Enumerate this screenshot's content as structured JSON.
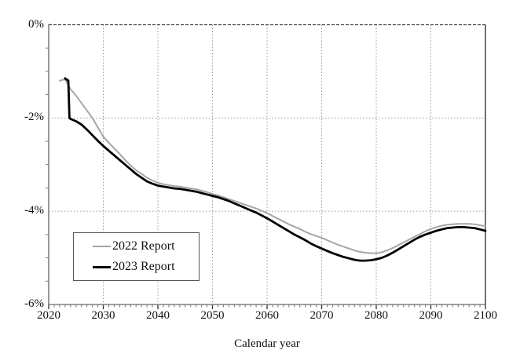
{
  "chart_data": {
    "type": "line",
    "title": "",
    "xlabel": "Calendar year",
    "ylabel": "",
    "xlim": [
      2020,
      2100
    ],
    "ylim": [
      -6,
      0
    ],
    "x_major_ticks": [
      2020,
      2030,
      2040,
      2050,
      2060,
      2070,
      2080,
      2090,
      2100
    ],
    "x_tick_labels": [
      "2020",
      "2030",
      "2040",
      "2050",
      "2060",
      "2070",
      "2080",
      "2090",
      "2100"
    ],
    "x_minor_step": 1,
    "y_major_ticks": [
      0,
      -2,
      -4,
      -6
    ],
    "y_tick_labels": [
      "0%",
      "-2%",
      "-4%",
      "-6%"
    ],
    "y_minor_step": 0.5,
    "grid_x": [
      2030,
      2040,
      2050,
      2060,
      2070,
      2080,
      2090
    ],
    "grid_y": [
      0,
      -2,
      -4
    ],
    "grid_on": true,
    "legend_position": "lower-left-inside",
    "colors": {
      "axis": "#808080",
      "right_border": "#333333",
      "grid": "#999999",
      "zero_line": "#444444",
      "tick_minor": "#777777",
      "tick_major": "#333333",
      "text": "#111111",
      "legend_border": "#555555"
    },
    "series": [
      {
        "name": "2022 Report",
        "color": "#a6a6a6",
        "width": 2,
        "points": [
          [
            2022,
            -1.2
          ],
          [
            2023,
            -1.17
          ],
          [
            2024,
            -1.38
          ],
          [
            2025,
            -1.52
          ],
          [
            2026,
            -1.68
          ],
          [
            2027,
            -1.84
          ],
          [
            2028,
            -2.0
          ],
          [
            2029,
            -2.2
          ],
          [
            2030,
            -2.4
          ],
          [
            2031,
            -2.53
          ],
          [
            2032,
            -2.65
          ],
          [
            2033,
            -2.77
          ],
          [
            2034,
            -2.9
          ],
          [
            2035,
            -3.02
          ],
          [
            2036,
            -3.12
          ],
          [
            2037,
            -3.2
          ],
          [
            2038,
            -3.28
          ],
          [
            2039,
            -3.34
          ],
          [
            2040,
            -3.39
          ],
          [
            2041,
            -3.42
          ],
          [
            2042,
            -3.44
          ],
          [
            2043,
            -3.46
          ],
          [
            2044,
            -3.47
          ],
          [
            2045,
            -3.49
          ],
          [
            2046,
            -3.51
          ],
          [
            2047,
            -3.53
          ],
          [
            2048,
            -3.56
          ],
          [
            2049,
            -3.59
          ],
          [
            2050,
            -3.63
          ],
          [
            2051,
            -3.66
          ],
          [
            2052,
            -3.7
          ],
          [
            2053,
            -3.74
          ],
          [
            2054,
            -3.78
          ],
          [
            2055,
            -3.82
          ],
          [
            2056,
            -3.86
          ],
          [
            2057,
            -3.9
          ],
          [
            2058,
            -3.94
          ],
          [
            2059,
            -3.99
          ],
          [
            2060,
            -4.04
          ],
          [
            2061,
            -4.1
          ],
          [
            2062,
            -4.16
          ],
          [
            2063,
            -4.22
          ],
          [
            2064,
            -4.28
          ],
          [
            2065,
            -4.33
          ],
          [
            2066,
            -4.38
          ],
          [
            2067,
            -4.44
          ],
          [
            2068,
            -4.49
          ],
          [
            2069,
            -4.53
          ],
          [
            2070,
            -4.57
          ],
          [
            2071,
            -4.62
          ],
          [
            2072,
            -4.67
          ],
          [
            2073,
            -4.72
          ],
          [
            2074,
            -4.76
          ],
          [
            2075,
            -4.8
          ],
          [
            2076,
            -4.84
          ],
          [
            2077,
            -4.87
          ],
          [
            2078,
            -4.89
          ],
          [
            2079,
            -4.9
          ],
          [
            2080,
            -4.9
          ],
          [
            2081,
            -4.88
          ],
          [
            2082,
            -4.84
          ],
          [
            2083,
            -4.79
          ],
          [
            2084,
            -4.73
          ],
          [
            2085,
            -4.67
          ],
          [
            2086,
            -4.61
          ],
          [
            2087,
            -4.55
          ],
          [
            2088,
            -4.49
          ],
          [
            2089,
            -4.43
          ],
          [
            2090,
            -4.38
          ],
          [
            2091,
            -4.34
          ],
          [
            2092,
            -4.31
          ],
          [
            2093,
            -4.29
          ],
          [
            2094,
            -4.28
          ],
          [
            2095,
            -4.27
          ],
          [
            2096,
            -4.27
          ],
          [
            2097,
            -4.27
          ],
          [
            2098,
            -4.28
          ],
          [
            2099,
            -4.3
          ],
          [
            2100,
            -4.32
          ]
        ]
      },
      {
        "name": "2023 Report",
        "color": "#000000",
        "width": 2.8,
        "points": [
          [
            2023,
            -1.15
          ],
          [
            2023.6,
            -1.2
          ],
          [
            2023.8,
            -2.0
          ],
          [
            2024,
            -2.02
          ],
          [
            2025,
            -2.07
          ],
          [
            2026,
            -2.14
          ],
          [
            2027,
            -2.25
          ],
          [
            2028,
            -2.37
          ],
          [
            2029,
            -2.49
          ],
          [
            2030,
            -2.6
          ],
          [
            2031,
            -2.7
          ],
          [
            2032,
            -2.8
          ],
          [
            2033,
            -2.9
          ],
          [
            2034,
            -3.0
          ],
          [
            2035,
            -3.1
          ],
          [
            2036,
            -3.2
          ],
          [
            2037,
            -3.28
          ],
          [
            2038,
            -3.36
          ],
          [
            2039,
            -3.41
          ],
          [
            2040,
            -3.45
          ],
          [
            2041,
            -3.47
          ],
          [
            2042,
            -3.49
          ],
          [
            2043,
            -3.51
          ],
          [
            2044,
            -3.52
          ],
          [
            2045,
            -3.54
          ],
          [
            2046,
            -3.56
          ],
          [
            2047,
            -3.58
          ],
          [
            2048,
            -3.61
          ],
          [
            2049,
            -3.64
          ],
          [
            2050,
            -3.67
          ],
          [
            2051,
            -3.7
          ],
          [
            2052,
            -3.74
          ],
          [
            2053,
            -3.78
          ],
          [
            2054,
            -3.83
          ],
          [
            2055,
            -3.88
          ],
          [
            2056,
            -3.93
          ],
          [
            2057,
            -3.98
          ],
          [
            2058,
            -4.03
          ],
          [
            2059,
            -4.09
          ],
          [
            2060,
            -4.15
          ],
          [
            2061,
            -4.22
          ],
          [
            2062,
            -4.29
          ],
          [
            2063,
            -4.36
          ],
          [
            2064,
            -4.43
          ],
          [
            2065,
            -4.5
          ],
          [
            2066,
            -4.56
          ],
          [
            2067,
            -4.62
          ],
          [
            2068,
            -4.69
          ],
          [
            2069,
            -4.75
          ],
          [
            2070,
            -4.8
          ],
          [
            2071,
            -4.85
          ],
          [
            2072,
            -4.9
          ],
          [
            2073,
            -4.94
          ],
          [
            2074,
            -4.98
          ],
          [
            2075,
            -5.01
          ],
          [
            2076,
            -5.04
          ],
          [
            2077,
            -5.06
          ],
          [
            2078,
            -5.06
          ],
          [
            2079,
            -5.05
          ],
          [
            2080,
            -5.03
          ],
          [
            2081,
            -5.0
          ],
          [
            2082,
            -4.95
          ],
          [
            2083,
            -4.89
          ],
          [
            2084,
            -4.82
          ],
          [
            2085,
            -4.75
          ],
          [
            2086,
            -4.68
          ],
          [
            2087,
            -4.61
          ],
          [
            2088,
            -4.55
          ],
          [
            2089,
            -4.5
          ],
          [
            2090,
            -4.46
          ],
          [
            2091,
            -4.42
          ],
          [
            2092,
            -4.39
          ],
          [
            2093,
            -4.36
          ],
          [
            2094,
            -4.35
          ],
          [
            2095,
            -4.34
          ],
          [
            2096,
            -4.34
          ],
          [
            2097,
            -4.35
          ],
          [
            2098,
            -4.36
          ],
          [
            2099,
            -4.39
          ],
          [
            2100,
            -4.42
          ]
        ]
      }
    ]
  }
}
